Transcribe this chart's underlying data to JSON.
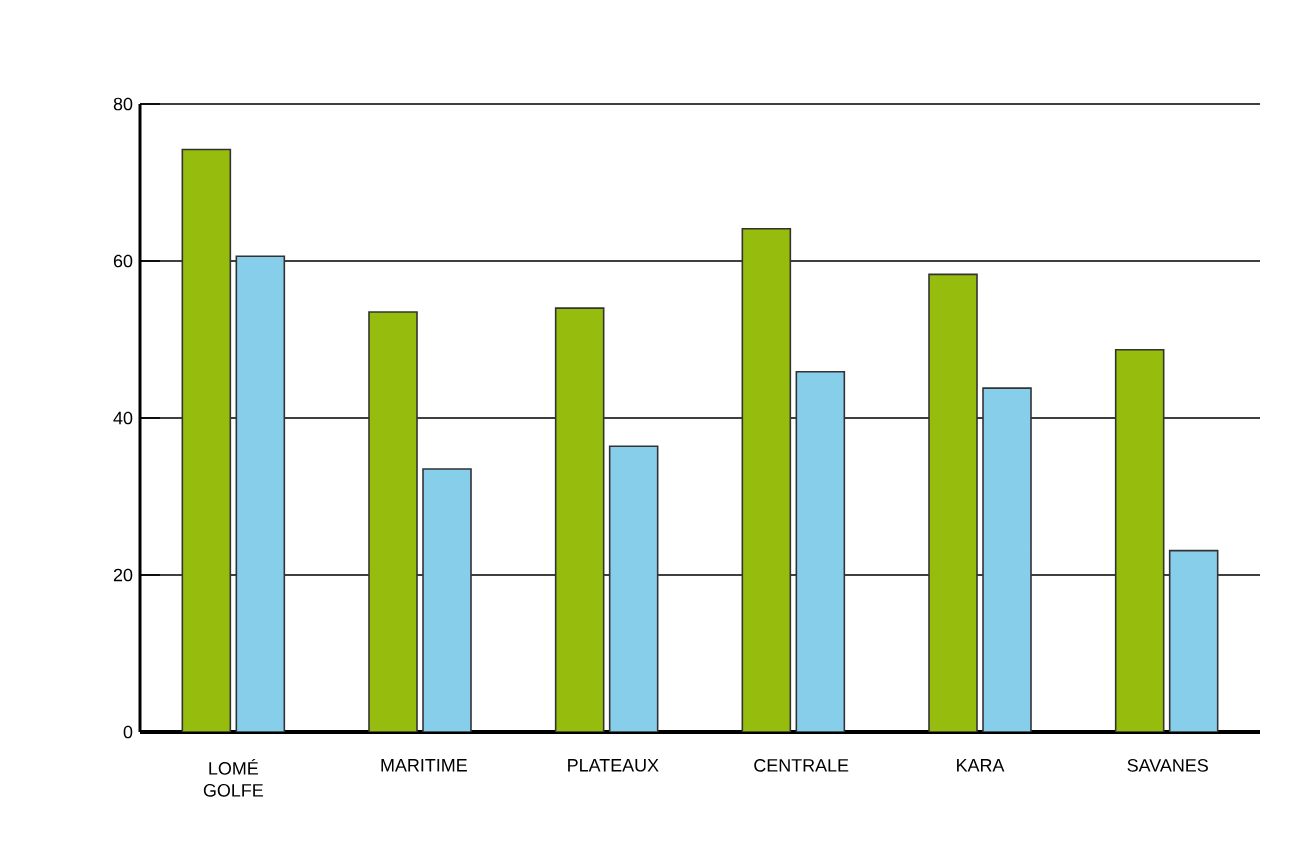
{
  "chart_data": {
    "type": "bar",
    "categories": [
      "LOMÉ GOLFE",
      "MARITIME",
      "PLATEAUX",
      "CENTRALE",
      "KARA",
      "SAVANES"
    ],
    "series": [
      {
        "color": "#96bd0d",
        "values": [
          74.2,
          53.5,
          54,
          64.1,
          58.3,
          48.7
        ]
      },
      {
        "color": "#87ceeb",
        "values": [
          60.6,
          33.5,
          36.4,
          45.9,
          43.8,
          23.1
        ]
      }
    ],
    "ylim": [
      0,
      80
    ],
    "yticks": [
      0,
      20,
      40,
      60,
      80
    ],
    "grid": "y"
  }
}
